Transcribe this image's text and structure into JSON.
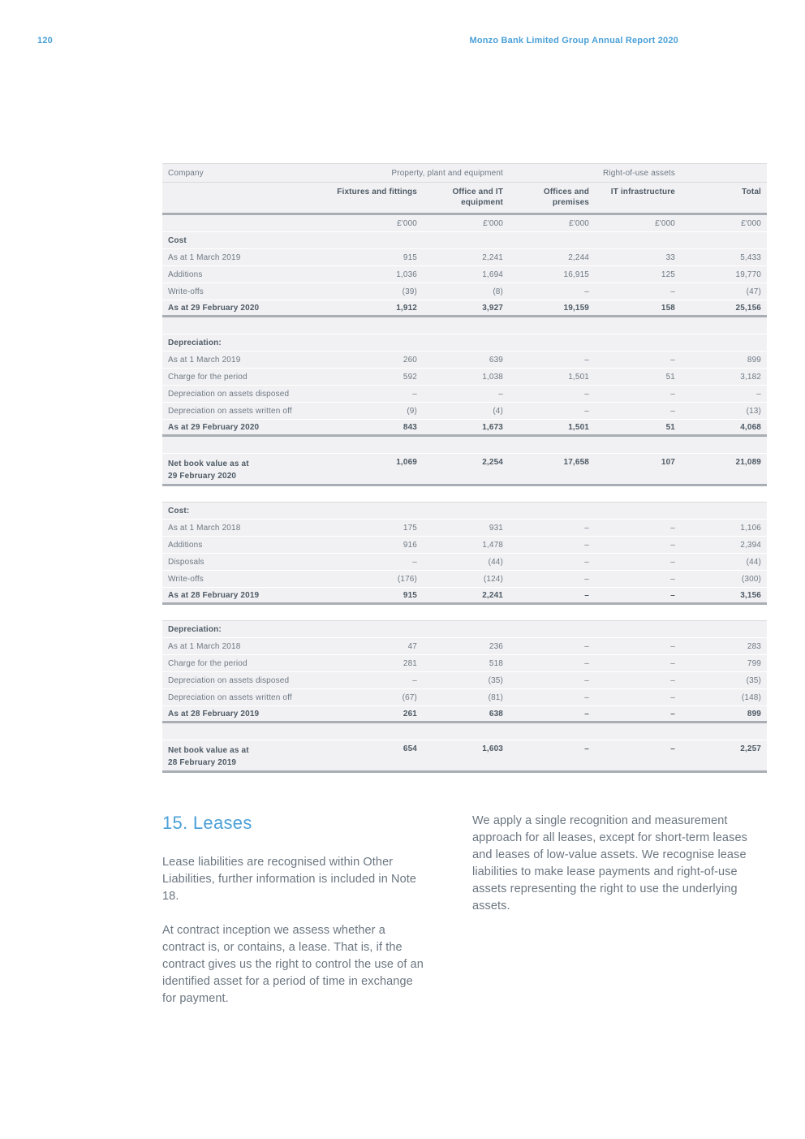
{
  "header": {
    "page_number": "120",
    "title": "Monzo Bank Limited Group Annual Report 2020"
  },
  "colors": {
    "accent_blue": "#4aa0d8",
    "table_row_bg": "#f1f1f3",
    "thick_rule": "#a9aeb4",
    "body_text": "#6b7680",
    "bold_text": "#4e5a65"
  },
  "table": {
    "company_label": "Company",
    "group_headers": [
      "Property, plant and equipment",
      "Right-of-use assets"
    ],
    "columns": [
      "Fixtures and fittings",
      "Office and IT equipment",
      "Offices and premises",
      "IT infrastructure",
      "Total"
    ],
    "unit": "£'000",
    "sections": [
      {
        "rows": [
          {
            "label": "Cost",
            "type": "header"
          },
          {
            "label": "As at 1 March 2019",
            "values": [
              "915",
              "2,241",
              "2,244",
              "33",
              "5,433"
            ]
          },
          {
            "label": "Additions",
            "values": [
              "1,036",
              "1,694",
              "16,915",
              "125",
              "19,770"
            ]
          },
          {
            "label": "Write-offs",
            "values": [
              "(39)",
              "(8)",
              "–",
              "–",
              "(47)"
            ]
          },
          {
            "label": "As at 29 February 2020",
            "values": [
              "1,912",
              "3,927",
              "19,159",
              "158",
              "25,156"
            ],
            "type": "total"
          }
        ]
      },
      {
        "rows": [
          {
            "label": "Depreciation:",
            "type": "header"
          },
          {
            "label": "As at 1 March 2019",
            "values": [
              "260",
              "639",
              "–",
              "–",
              "899"
            ]
          },
          {
            "label": "Charge for the period",
            "values": [
              "592",
              "1,038",
              "1,501",
              "51",
              "3,182"
            ]
          },
          {
            "label": "Depreciation on assets disposed",
            "values": [
              "–",
              "–",
              "–",
              "–",
              "–"
            ]
          },
          {
            "label": "Depreciation on assets written off",
            "values": [
              "(9)",
              "(4)",
              "–",
              "–",
              "(13)"
            ]
          },
          {
            "label": "As at 29 February 2020",
            "values": [
              "843",
              "1,673",
              "1,501",
              "51",
              "4,068"
            ],
            "type": "total"
          }
        ]
      },
      {
        "rows": [
          {
            "label": "Net book value as at\n29 February 2020",
            "values": [
              "1,069",
              "2,254",
              "17,658",
              "107",
              "21,089"
            ],
            "type": "netbook"
          }
        ]
      },
      {
        "rows": [
          {
            "label": "Cost:",
            "type": "header"
          },
          {
            "label": "As at 1 March 2018",
            "values": [
              "175",
              "931",
              "–",
              "–",
              "1,106"
            ]
          },
          {
            "label": "Additions",
            "values": [
              "916",
              "1,478",
              "–",
              "–",
              "2,394"
            ]
          },
          {
            "label": "Disposals",
            "values": [
              "–",
              "(44)",
              "–",
              "–",
              "(44)"
            ]
          },
          {
            "label": "Write-offs",
            "values": [
              "(176)",
              "(124)",
              "–",
              "–",
              "(300)"
            ]
          },
          {
            "label": "As at 28 February 2019",
            "values": [
              "915",
              "2,241",
              "–",
              "–",
              "3,156"
            ],
            "type": "total"
          }
        ]
      },
      {
        "rows": [
          {
            "label": "Depreciation:",
            "type": "header"
          },
          {
            "label": "As at 1 March 2018",
            "values": [
              "47",
              "236",
              "–",
              "–",
              "283"
            ]
          },
          {
            "label": "Charge for the period",
            "values": [
              "281",
              "518",
              "–",
              "–",
              "799"
            ]
          },
          {
            "label": "Depreciation on assets disposed",
            "values": [
              "–",
              "(35)",
              "–",
              "–",
              "(35)"
            ]
          },
          {
            "label": "Depreciation on assets written off",
            "values": [
              "(67)",
              "(81)",
              "–",
              "–",
              "(148)"
            ]
          },
          {
            "label": "As at 28 February 2019",
            "values": [
              "261",
              "638",
              "–",
              "–",
              "899"
            ],
            "type": "total"
          }
        ]
      },
      {
        "rows": [
          {
            "label": "Net book value as at\n28 February 2019",
            "values": [
              "654",
              "1,603",
              "–",
              "–",
              "2,257"
            ],
            "type": "netbook"
          }
        ]
      }
    ]
  },
  "note": {
    "heading": "15. Leases",
    "left_paragraphs": [
      "Lease liabilities are recognised within Other Liabilities, further information is included in Note 18.",
      "At contract inception we assess whether a contract is, or contains, a lease. That is, if the contract gives us the right to control the use of an identified asset for a period of time in exchange for payment."
    ],
    "right_paragraphs": [
      "We apply a single recognition and measurement approach for all leases, except for short-term leases and leases of low-value assets. We recognise lease liabilities to make lease payments and right-of-use assets representing the right to use the underlying assets."
    ]
  }
}
